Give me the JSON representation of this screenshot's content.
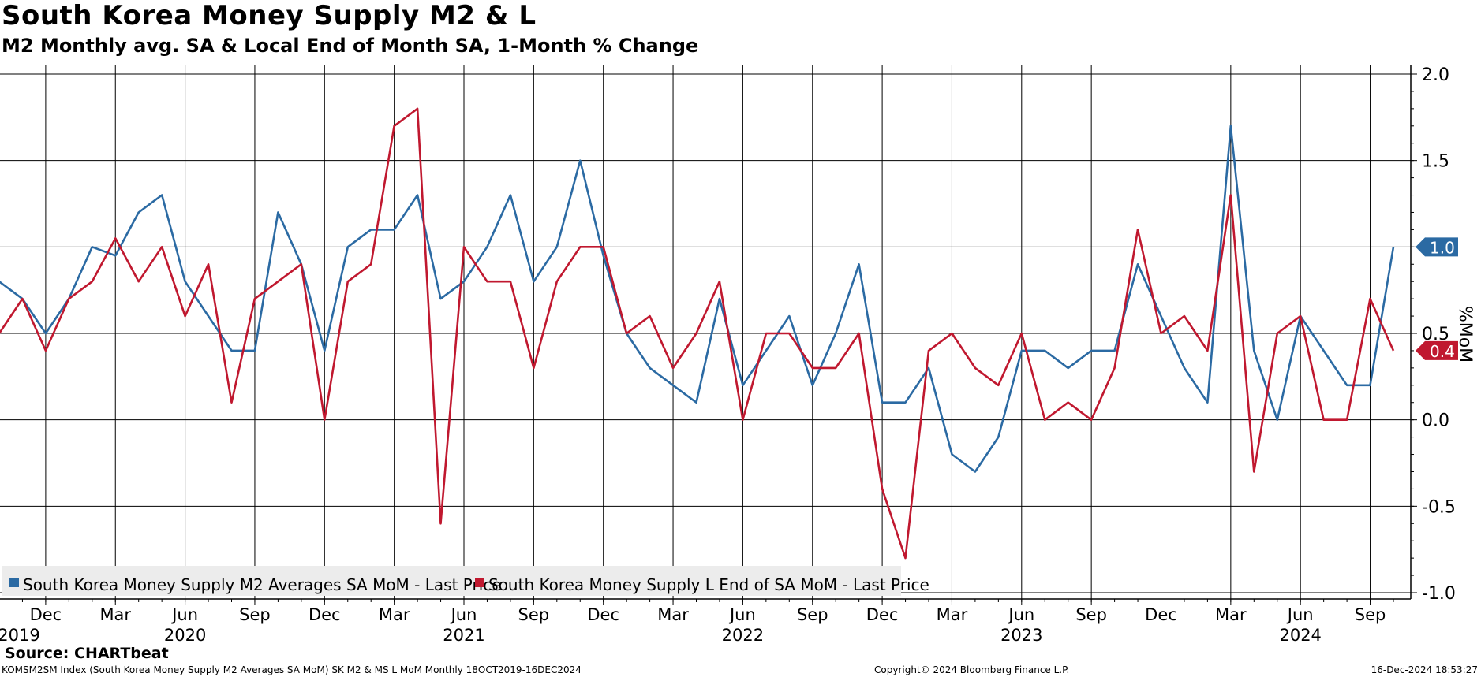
{
  "header": {
    "title": "South Korea Money Supply M2 & L",
    "subtitle": "M2 Monthly avg. SA & Local End of Month SA, 1-Month % Change"
  },
  "footer": {
    "source": "Source: CHARTbeat",
    "index_info": "KOMSM2SM Index (South Korea Money Supply M2 Averages SA MoM) SK M2 & MS L MoM  Monthly 18OCT2019-16DEC2024",
    "copyright": "Copyright© 2024 Bloomberg Finance L.P.",
    "timestamp": "16-Dec-2024 18:53:27"
  },
  "chart_data": {
    "type": "line",
    "ylabel": "%MoM",
    "ylim": [
      -1.0,
      2.0
    ],
    "yticks": [
      {
        "value": 2.0,
        "label": "2.0"
      },
      {
        "value": 1.5,
        "label": "1.5"
      },
      {
        "value": 1.0,
        "label": "1.0"
      },
      {
        "value": 0.5,
        "label": "0.5"
      },
      {
        "value": 0.0,
        "label": "0.0"
      },
      {
        "value": -0.5,
        "label": "-0.5"
      },
      {
        "value": -1.0,
        "label": "-1.0"
      }
    ],
    "x_start": "2019-10",
    "x_end": "2024-10",
    "month_ticks": [
      {
        "date": "2019-12",
        "label": "Dec"
      },
      {
        "date": "2020-03",
        "label": "Mar"
      },
      {
        "date": "2020-06",
        "label": "Jun"
      },
      {
        "date": "2020-09",
        "label": "Sep"
      },
      {
        "date": "2020-12",
        "label": "Dec"
      },
      {
        "date": "2021-03",
        "label": "Mar"
      },
      {
        "date": "2021-06",
        "label": "Jun"
      },
      {
        "date": "2021-09",
        "label": "Sep"
      },
      {
        "date": "2021-12",
        "label": "Dec"
      },
      {
        "date": "2022-03",
        "label": "Mar"
      },
      {
        "date": "2022-06",
        "label": "Jun"
      },
      {
        "date": "2022-09",
        "label": "Sep"
      },
      {
        "date": "2022-12",
        "label": "Dec"
      },
      {
        "date": "2023-03",
        "label": "Mar"
      },
      {
        "date": "2023-06",
        "label": "Jun"
      },
      {
        "date": "2023-09",
        "label": "Sep"
      },
      {
        "date": "2023-12",
        "label": "Dec"
      },
      {
        "date": "2024-03",
        "label": "Mar"
      },
      {
        "date": "2024-06",
        "label": "Jun"
      },
      {
        "date": "2024-09",
        "label": "Sep"
      }
    ],
    "year_labels": [
      {
        "date": "2019-10",
        "label": "2019"
      },
      {
        "date": "2020-06",
        "label": "2020"
      },
      {
        "date": "2021-06",
        "label": "2021"
      },
      {
        "date": "2022-06",
        "label": "2022"
      },
      {
        "date": "2023-06",
        "label": "2023"
      },
      {
        "date": "2024-06",
        "label": "2024"
      }
    ],
    "x": [
      "2019-10",
      "2019-11",
      "2019-12",
      "2020-01",
      "2020-02",
      "2020-03",
      "2020-04",
      "2020-05",
      "2020-06",
      "2020-07",
      "2020-08",
      "2020-09",
      "2020-10",
      "2020-11",
      "2020-12",
      "2021-01",
      "2021-02",
      "2021-03",
      "2021-04",
      "2021-05",
      "2021-06",
      "2021-07",
      "2021-08",
      "2021-09",
      "2021-10",
      "2021-11",
      "2021-12",
      "2022-01",
      "2022-02",
      "2022-03",
      "2022-04",
      "2022-05",
      "2022-06",
      "2022-07",
      "2022-08",
      "2022-09",
      "2022-10",
      "2022-11",
      "2022-12",
      "2023-01",
      "2023-02",
      "2023-03",
      "2023-04",
      "2023-05",
      "2023-06",
      "2023-07",
      "2023-08",
      "2023-09",
      "2023-10",
      "2023-11",
      "2023-12",
      "2024-01",
      "2024-02",
      "2024-03",
      "2024-04",
      "2024-05",
      "2024-06",
      "2024-07",
      "2024-08",
      "2024-09",
      "2024-10"
    ],
    "series": [
      {
        "name": "South Korea Money Supply M2 Averages SA MoM - Last Price",
        "color": "#2b6aa3",
        "last_label": "1.0",
        "values": [
          0.8,
          0.7,
          0.5,
          0.7,
          1.0,
          0.95,
          1.2,
          1.3,
          0.8,
          0.6,
          0.4,
          0.4,
          1.2,
          0.9,
          0.4,
          1.0,
          1.1,
          1.1,
          1.3,
          0.7,
          0.8,
          1.0,
          1.3,
          0.8,
          1.0,
          1.5,
          0.95,
          0.5,
          0.3,
          0.2,
          0.1,
          0.7,
          0.2,
          0.4,
          0.6,
          0.2,
          0.5,
          0.9,
          0.1,
          0.1,
          0.3,
          -0.2,
          -0.3,
          -0.1,
          0.4,
          0.4,
          0.3,
          0.4,
          0.4,
          0.9,
          0.6,
          0.3,
          0.1,
          1.7,
          0.4,
          0.0,
          0.6,
          0.4,
          0.2,
          0.2,
          1.0
        ]
      },
      {
        "name": "South Korea Money Supply L End of SA MoM - Last Price",
        "color": "#c0182f",
        "last_label": "0.4",
        "values": [
          0.5,
          0.7,
          0.4,
          0.7,
          0.8,
          1.05,
          0.8,
          1.0,
          0.6,
          0.9,
          0.1,
          0.7,
          0.8,
          0.9,
          0.0,
          0.8,
          0.9,
          1.7,
          1.8,
          -0.6,
          1.0,
          0.8,
          0.8,
          0.3,
          0.8,
          1.0,
          1.0,
          0.5,
          0.6,
          0.3,
          0.5,
          0.8,
          0.0,
          0.5,
          0.5,
          0.3,
          0.3,
          0.5,
          -0.4,
          -0.8,
          0.4,
          0.5,
          0.3,
          0.2,
          0.5,
          0.0,
          0.1,
          0.0,
          0.3,
          1.1,
          0.5,
          0.6,
          0.4,
          1.3,
          -0.3,
          0.5,
          0.6,
          0.0,
          0.0,
          0.7,
          0.4
        ]
      }
    ],
    "grid": true,
    "legend_position": "bottom-left"
  }
}
